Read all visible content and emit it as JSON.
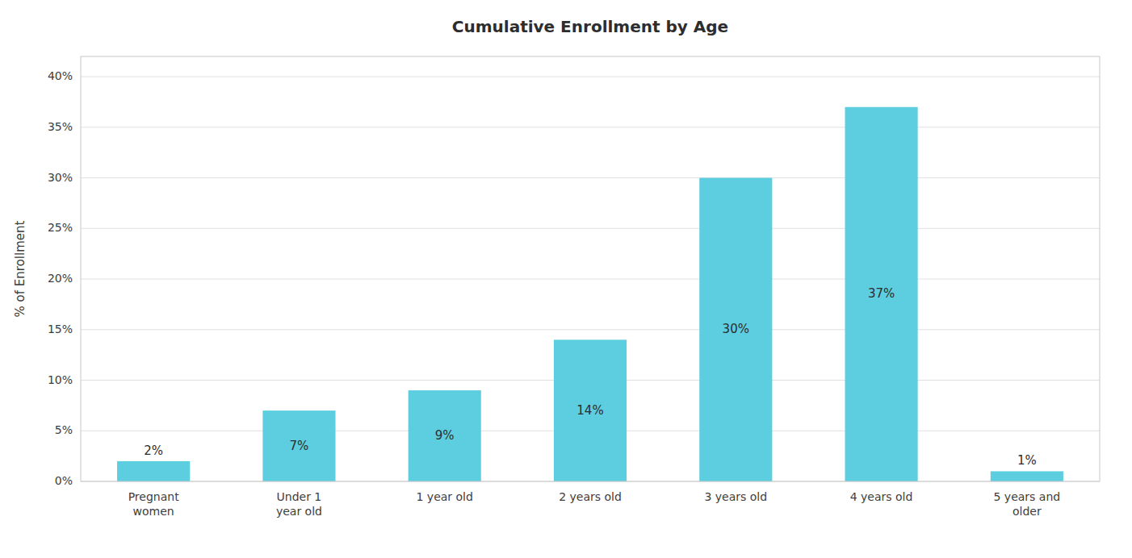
{
  "chart_data": {
    "type": "bar",
    "title": "Cumulative Enrollment by Age",
    "categories": [
      "Pregnant\nwomen",
      "Under 1\nyear old",
      "1 year old",
      "2 years old",
      "3 years old",
      "4 years old",
      "5 years and\nolder"
    ],
    "values": [
      2,
      7,
      9,
      14,
      30,
      37,
      1
    ],
    "value_labels": [
      "2%",
      "7%",
      "9%",
      "14%",
      "30%",
      "37%",
      "1%"
    ],
    "data_labels": true,
    "color": "#5DCEDF",
    "ylabel": "% of Enrollment",
    "ylim": [
      0,
      42
    ],
    "yticks": [
      {
        "value": 0,
        "label": "0%"
      },
      {
        "value": 5,
        "label": "5%"
      },
      {
        "value": 10,
        "label": "10%"
      },
      {
        "value": 15,
        "label": "15%"
      },
      {
        "value": 20,
        "label": "20%"
      },
      {
        "value": 25,
        "label": "25%"
      },
      {
        "value": 30,
        "label": "30%"
      },
      {
        "value": 35,
        "label": "35%"
      },
      {
        "value": 40,
        "label": "40%"
      }
    ],
    "grid": true
  }
}
